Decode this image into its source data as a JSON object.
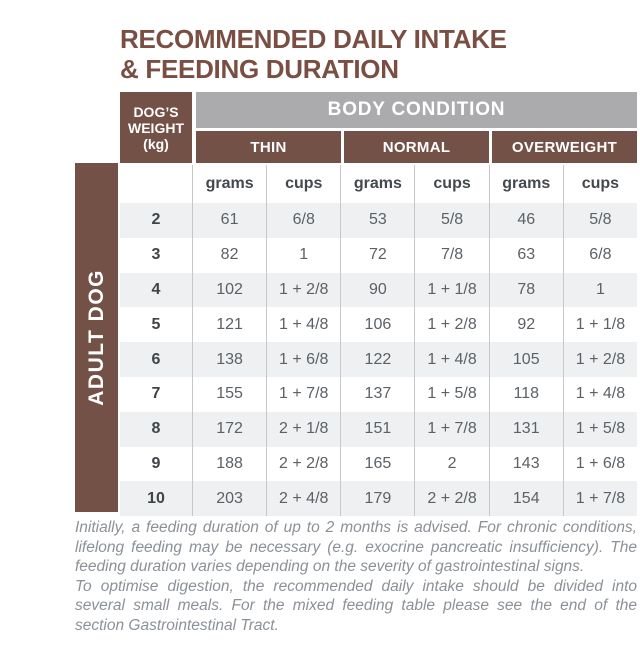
{
  "title": {
    "line1": "RECOMMENDED DAILY INTAKE",
    "line2": "& FEEDING DURATION"
  },
  "table": {
    "side_label": "ADULT DOG",
    "weight_header_lines": [
      "DOG’S",
      "WEIGHT",
      "(kg)"
    ],
    "body_condition_label": "BODY CONDITION",
    "condition_groups": [
      "THIN",
      "NORMAL",
      "OVERWEIGHT"
    ],
    "unit_headers": [
      "grams",
      "cups",
      "grams",
      "cups",
      "grams",
      "cups"
    ],
    "rows": [
      {
        "weight": "2",
        "values": [
          "61",
          "6/8",
          "53",
          "5/8",
          "46",
          "5/8"
        ]
      },
      {
        "weight": "3",
        "values": [
          "82",
          "1",
          "72",
          "7/8",
          "63",
          "6/8"
        ]
      },
      {
        "weight": "4",
        "values": [
          "102",
          "1 + 2/8",
          "90",
          "1 + 1/8",
          "78",
          "1"
        ]
      },
      {
        "weight": "5",
        "values": [
          "121",
          "1 + 4/8",
          "106",
          "1 + 2/8",
          "92",
          "1 + 1/8"
        ]
      },
      {
        "weight": "6",
        "values": [
          "138",
          "1 + 6/8",
          "122",
          "1 + 4/8",
          "105",
          "1 + 2/8"
        ]
      },
      {
        "weight": "7",
        "values": [
          "155",
          "1 + 7/8",
          "137",
          "1 + 5/8",
          "118",
          "1 + 4/8"
        ]
      },
      {
        "weight": "8",
        "values": [
          "172",
          "2 + 1/8",
          "151",
          "1 + 7/8",
          "131",
          "1 + 5/8"
        ]
      },
      {
        "weight": "9",
        "values": [
          "188",
          "2 + 2/8",
          "165",
          "2",
          "143",
          "1 + 6/8"
        ]
      },
      {
        "weight": "10",
        "values": [
          "203",
          "2 + 4/8",
          "179",
          "2 + 2/8",
          "154",
          "1 + 7/8"
        ]
      }
    ]
  },
  "notes": {
    "para1": "Initially, a feeding duration of up to 2 months is advised. For chronic conditions, lifelong feeding may be necessary (e.g. exocrine pancreatic insufficiency). The feeding duration varies depending on the severity of gastrointestinal signs.",
    "para2": "To optimise digestion, the recommended daily intake should be divided into several small meals. For the mixed feeding table please see the end of the section Gastrointestinal Tract."
  },
  "colors": {
    "brown": "#745147",
    "title_brown": "#7a4e42",
    "gray_header": "#ababad",
    "row_alt": "#eef0f1",
    "grid_line": "#c6c7c8",
    "data_text": "#5b6166",
    "note_text": "#8b9197"
  }
}
